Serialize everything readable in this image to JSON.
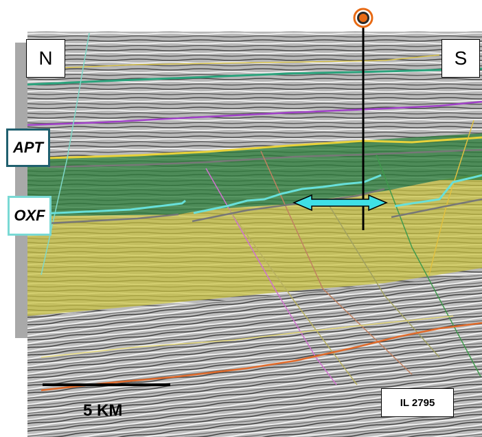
{
  "section": {
    "labels": {
      "north": "N",
      "south": "S",
      "apt": "APT",
      "oxf": "OXF",
      "inline": "IL 2795"
    },
    "scale_bar_text": "5 KM"
  },
  "colors": {
    "apt_box_border": "#1f5f6e",
    "oxf_box_border": "#79d9d4",
    "green_layer": "#2e7d3c",
    "yellow_layer": "#c9c23a",
    "cyan_horizon": "#68e0da",
    "yellow_horizon": "#e8d23a",
    "purple_horizon": "#a040c8",
    "teal_horizon": "#2aa37c",
    "orange_horizon": "#e06a2a",
    "arrow": "#3fe0e6",
    "well_marker": "#e86a14"
  },
  "icons": {
    "well_marker": "well-location-icon",
    "double_arrow": "double-arrow-icon"
  }
}
